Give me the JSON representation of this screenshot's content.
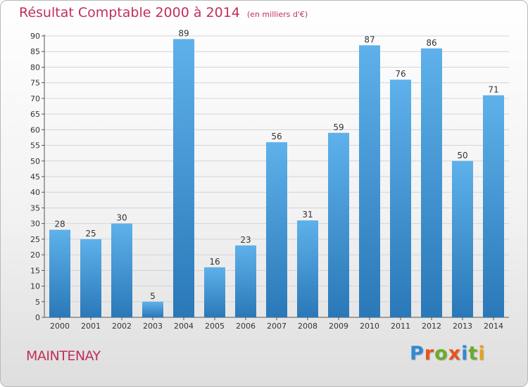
{
  "chart_data": {
    "type": "bar",
    "title": "Résultat Comptable 2000 à 2014",
    "subtitle": "(en milliers d'€)",
    "categories": [
      "2000",
      "2001",
      "2002",
      "2003",
      "2004",
      "2005",
      "2006",
      "2007",
      "2008",
      "2009",
      "2010",
      "2011",
      "2012",
      "2013",
      "2014"
    ],
    "values": [
      28,
      25,
      30,
      5,
      89,
      16,
      23,
      56,
      31,
      59,
      87,
      76,
      86,
      50,
      71
    ],
    "ylim": [
      0,
      90
    ],
    "yticks": [
      0,
      5,
      10,
      15,
      20,
      25,
      30,
      35,
      40,
      45,
      50,
      55,
      60,
      65,
      70,
      75,
      80,
      85,
      90
    ],
    "grid": true,
    "bar_color": "#3f93d3"
  },
  "footer": {
    "commune": "MAINTENAY",
    "logo_text": "Proxiti",
    "logo_colors": [
      "#2f8ad3",
      "#e5541b",
      "#6aab2b",
      "#e5541b",
      "#2f8ad3",
      "#6aab2b",
      "#e5a21b"
    ]
  }
}
